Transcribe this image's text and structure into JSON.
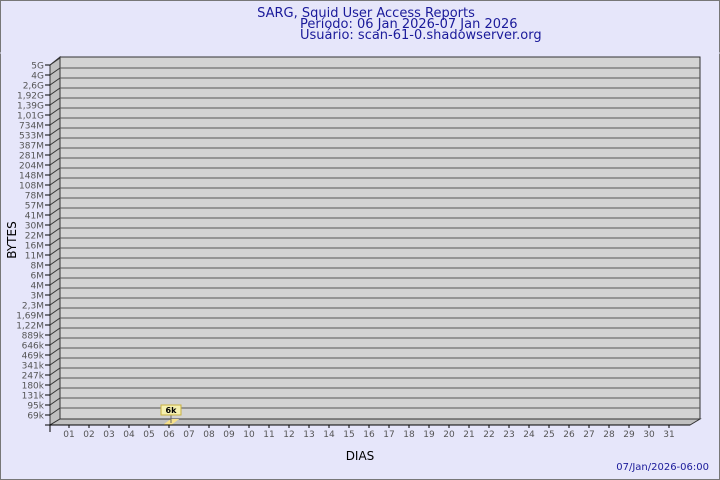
{
  "header": {
    "title": "SARG, Squid User Access Reports",
    "period": "Período: 06 Jan 2026-07 Jan 2026",
    "user": "Usuário: scan-61-0.shadowserver.org"
  },
  "footer": {
    "timestamp": "07/Jan/2026-06:00"
  },
  "colors": {
    "title": "#1a1a9a",
    "wall": "#d3d3d3",
    "side": "#c0c0c0",
    "bar": "#f7e08a",
    "label_bg": "#f5f0b0"
  },
  "chart_data": {
    "type": "bar",
    "xlabel": "DIAS",
    "ylabel": "BYTES",
    "y_scale": "log",
    "grid": true,
    "y_ticks": [
      "5G",
      "4G",
      "2,6G",
      "1,92G",
      "1,39G",
      "1,01G",
      "734M",
      "533M",
      "387M",
      "281M",
      "204M",
      "148M",
      "108M",
      "78M",
      "57M",
      "41M",
      "30M",
      "22M",
      "16M",
      "11M",
      "8M",
      "6M",
      "4M",
      "3M",
      "2,3M",
      "1,69M",
      "1,22M",
      "889k",
      "646k",
      "469k",
      "341k",
      "247k",
      "180k",
      "131k",
      "95k",
      "69k"
    ],
    "categories": [
      "01",
      "02",
      "03",
      "04",
      "05",
      "06",
      "07",
      "08",
      "09",
      "10",
      "11",
      "12",
      "13",
      "14",
      "15",
      "16",
      "17",
      "18",
      "19",
      "20",
      "21",
      "22",
      "23",
      "24",
      "25",
      "26",
      "27",
      "28",
      "29",
      "30",
      "31"
    ],
    "values": [
      null,
      null,
      null,
      null,
      null,
      6000,
      null,
      null,
      null,
      null,
      null,
      null,
      null,
      null,
      null,
      null,
      null,
      null,
      null,
      null,
      null,
      null,
      null,
      null,
      null,
      null,
      null,
      null,
      null,
      null,
      null
    ],
    "data_labels": [
      {
        "category": "06",
        "text": "6k"
      }
    ]
  }
}
